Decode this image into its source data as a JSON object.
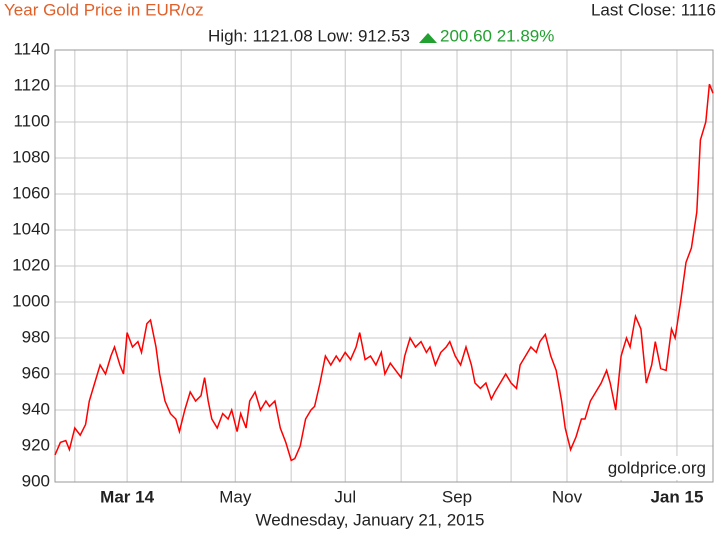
{
  "chart_data": {
    "type": "line",
    "title": "Year Gold Price in EUR/oz",
    "last_close": "Last Close: 1116",
    "high_low": "High: 1121.08 Low: 912.53",
    "change": "200.60 21.89%",
    "watermark": "goldprice.org",
    "date": "Wednesday, January 21, 2015",
    "color": "#ff0000",
    "grid": true,
    "xlim": [
      0,
      365
    ],
    "xticks": [
      {
        "value": 40,
        "label": "Mar 14",
        "bold": true
      },
      {
        "value": 100,
        "label": "May"
      },
      {
        "value": 161,
        "label": "Jul"
      },
      {
        "value": 223,
        "label": "Sep"
      },
      {
        "value": 284,
        "label": "Nov"
      },
      {
        "value": 345,
        "label": "Jan 15",
        "bold": true
      }
    ],
    "xminorticks": [
      11,
      70,
      131,
      192,
      253,
      314
    ],
    "ylim": [
      900,
      1140
    ],
    "yticks": [
      900,
      920,
      940,
      960,
      980,
      1000,
      1020,
      1040,
      1060,
      1080,
      1100,
      1120,
      1140
    ],
    "x": [
      0,
      3,
      6,
      8,
      11,
      14,
      17,
      19,
      22,
      25,
      28,
      31,
      33,
      36,
      38,
      40,
      43,
      46,
      48,
      51,
      53,
      56,
      58,
      61,
      64,
      67,
      69,
      72,
      75,
      78,
      81,
      83,
      85,
      87,
      90,
      93,
      96,
      98,
      101,
      103,
      106,
      108,
      111,
      114,
      117,
      119,
      122,
      125,
      128,
      131,
      133,
      136,
      139,
      142,
      144,
      147,
      150,
      153,
      156,
      158,
      161,
      164,
      167,
      169,
      172,
      175,
      178,
      181,
      183,
      186,
      189,
      192,
      194,
      197,
      200,
      203,
      206,
      208,
      211,
      214,
      217,
      219,
      222,
      225,
      228,
      231,
      233,
      236,
      239,
      242,
      244,
      247,
      250,
      253,
      256,
      258,
      261,
      264,
      267,
      269,
      272,
      275,
      278,
      281,
      283,
      286,
      289,
      292,
      294,
      297,
      300,
      303,
      306,
      308,
      311,
      314,
      317,
      319,
      322,
      325,
      328,
      331,
      333,
      336,
      339,
      342,
      344,
      347,
      350,
      353,
      356,
      358,
      361,
      363,
      365
    ],
    "values": [
      915,
      922,
      923,
      918,
      930,
      926,
      932,
      945,
      955,
      965,
      960,
      970,
      975,
      965,
      960,
      983,
      975,
      978,
      972,
      988,
      990,
      975,
      960,
      945,
      938,
      935,
      928,
      940,
      950,
      945,
      948,
      958,
      945,
      935,
      930,
      938,
      935,
      940,
      928,
      938,
      930,
      945,
      950,
      940,
      945,
      942,
      945,
      930,
      922,
      912,
      913,
      920,
      935,
      940,
      942,
      955,
      970,
      965,
      970,
      967,
      972,
      968,
      975,
      983,
      968,
      970,
      965,
      972,
      960,
      966,
      962,
      958,
      970,
      980,
      975,
      978,
      972,
      975,
      965,
      972,
      975,
      978,
      970,
      965,
      975,
      965,
      955,
      952,
      955,
      946,
      950,
      955,
      960,
      955,
      952,
      965,
      970,
      975,
      972,
      978,
      982,
      970,
      962,
      945,
      930,
      918,
      925,
      935,
      935,
      945,
      950,
      955,
      962,
      955,
      940,
      970,
      980,
      975,
      992,
      985,
      955,
      965,
      978,
      963,
      962,
      985,
      980,
      1000,
      1022,
      1030,
      1050,
      1090,
      1100,
      1121,
      1116
    ]
  }
}
